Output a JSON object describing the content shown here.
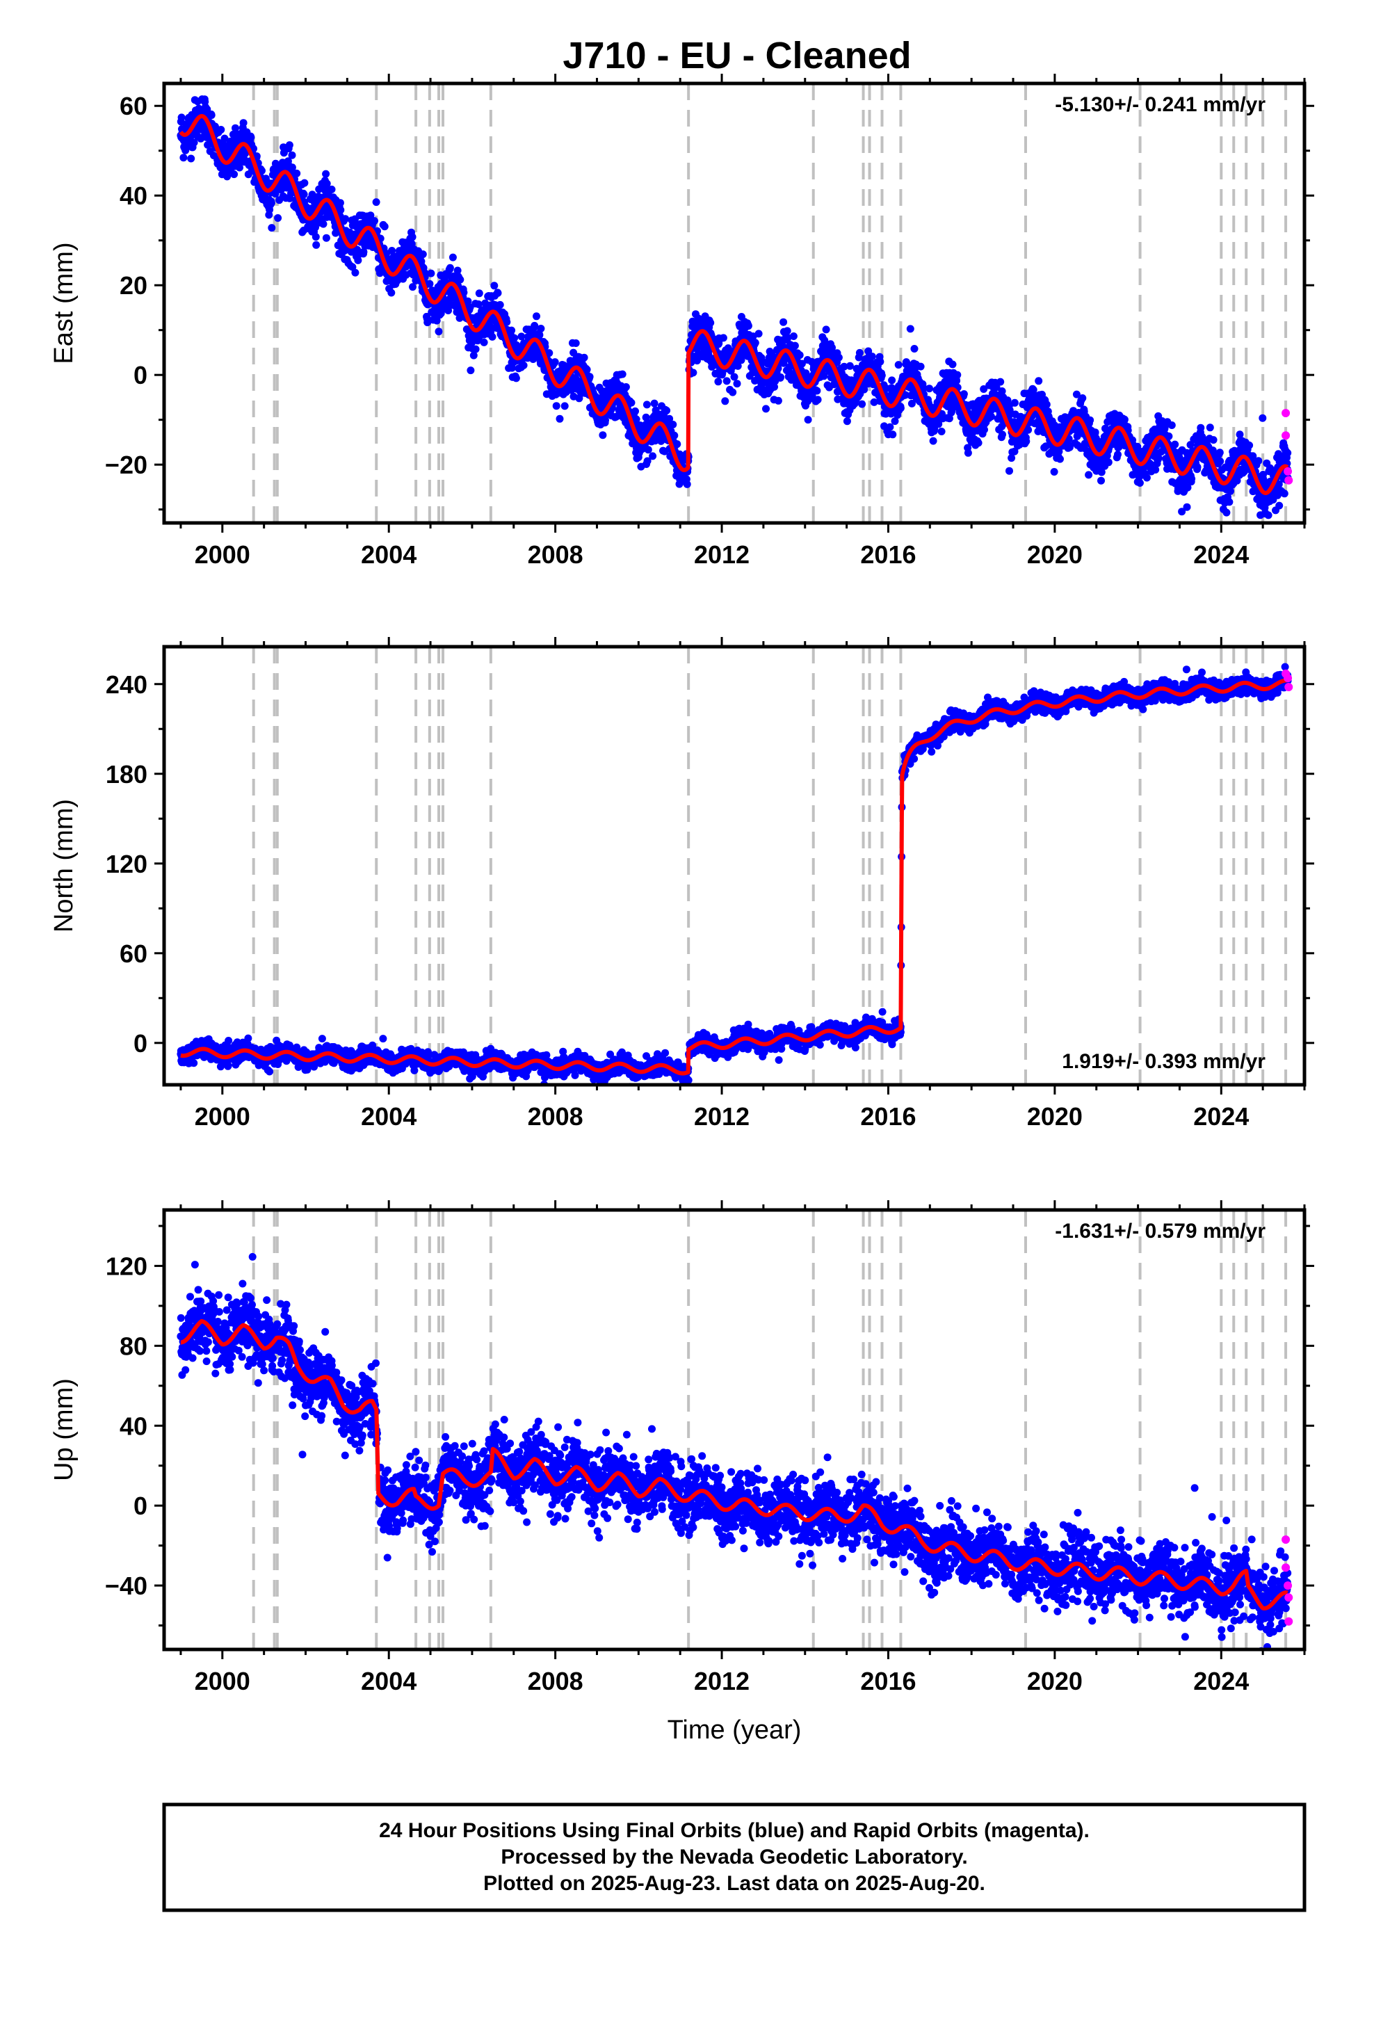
{
  "title": "J710  - EU - Cleaned",
  "colors": {
    "final_orbits": "#0000ff",
    "rapid_orbits": "#ff00ff",
    "model": "#ff0000",
    "events": "#c0c0c0"
  },
  "chart_data": [
    {
      "type": "scatter",
      "name": "east",
      "ylabel": "East (mm)",
      "xlabel": "",
      "xlim": [
        1998.6,
        2026.0
      ],
      "ylim": [
        -33,
        65
      ],
      "x_ticks": [
        2000,
        2004,
        2008,
        2012,
        2016,
        2020,
        2024
      ],
      "y_ticks": [
        -20,
        0,
        20,
        40,
        60
      ],
      "y_tick_labels": [
        "−20",
        "0",
        "20",
        "40",
        "60"
      ],
      "x_tick_labels": [
        "2000",
        "2004",
        "2008",
        "2012",
        "2016",
        "2020",
        "2024"
      ],
      "rate": "-5.130+/- 0.241 mm/yr",
      "rate_position": "top-right",
      "grid": false,
      "event_lines": [
        2000.75,
        2001.25,
        2001.32,
        2003.7,
        2004.65,
        2004.98,
        2005.2,
        2005.3,
        2006.45,
        2011.2,
        2014.2,
        2015.4,
        2015.55,
        2015.85,
        2016.3,
        2019.3,
        2022.05,
        2024.0,
        2024.3,
        2024.6,
        2025.0,
        2025.55
      ],
      "trend_segments": [
        {
          "t0": 1999.0,
          "t1": 2011.2,
          "v0": 57.5,
          "v1": -18.5
        },
        {
          "t0": 2011.2,
          "t1": 2025.6,
          "v0": 7.0,
          "v1": -24.0
        }
      ],
      "seasonal_amplitude": 3.5,
      "scatter_spread": 2.5,
      "rapid_points": [
        {
          "x": 2025.55,
          "y": -8.5
        },
        {
          "x": 2025.55,
          "y": -13.5
        },
        {
          "x": 2025.6,
          "y": -21.5
        },
        {
          "x": 2025.62,
          "y": -23.5
        }
      ]
    },
    {
      "type": "scatter",
      "name": "north",
      "ylabel": "North (mm)",
      "xlabel": "",
      "xlim": [
        1998.6,
        2026.0
      ],
      "ylim": [
        -28,
        265
      ],
      "x_ticks": [
        2000,
        2004,
        2008,
        2012,
        2016,
        2020,
        2024
      ],
      "y_ticks": [
        0,
        60,
        120,
        180,
        240
      ],
      "y_tick_labels": [
        "0",
        "60",
        "120",
        "180",
        "240"
      ],
      "x_tick_labels": [
        "2000",
        "2004",
        "2008",
        "2012",
        "2016",
        "2020",
        "2024"
      ],
      "rate": "1.919+/- 0.393 mm/yr",
      "rate_position": "bottom-right",
      "grid": false,
      "event_lines": [
        2000.75,
        2001.25,
        2001.32,
        2003.7,
        2004.65,
        2004.98,
        2005.2,
        2005.3,
        2006.45,
        2011.2,
        2014.2,
        2015.4,
        2015.55,
        2015.85,
        2016.3,
        2019.3,
        2022.05,
        2024.0,
        2024.3,
        2024.6,
        2025.0,
        2025.55
      ],
      "trend_segments": [
        {
          "t0": 1999.0,
          "t1": 2011.2,
          "v0": -6.0,
          "v1": -18.0
        },
        {
          "t0": 2011.2,
          "t1": 2016.3,
          "v0": -3.0,
          "v1": 10.0
        },
        {
          "t0": 2016.3,
          "t1": 2016.33,
          "v0": 10.0,
          "v1": 178.0
        },
        {
          "t0": 2016.33,
          "t1": 2017.2,
          "v0": 178.0,
          "v1": 208.0,
          "curve": "log"
        },
        {
          "t0": 2017.2,
          "t1": 2025.6,
          "v0": 208.0,
          "v1": 240.0,
          "curve": "log"
        }
      ],
      "seasonal_amplitude": 2.5,
      "scatter_spread": 3.0,
      "rapid_points": [
        {
          "x": 2025.55,
          "y": 247
        },
        {
          "x": 2025.6,
          "y": 244
        },
        {
          "x": 2025.62,
          "y": 238
        }
      ]
    },
    {
      "type": "scatter",
      "name": "up",
      "ylabel": "Up (mm)",
      "xlabel": "Time (year)",
      "xlim": [
        1998.6,
        2026.0
      ],
      "ylim": [
        -72,
        148
      ],
      "x_ticks": [
        2000,
        2004,
        2008,
        2012,
        2016,
        2020,
        2024
      ],
      "y_ticks": [
        -40,
        0,
        40,
        80,
        120
      ],
      "y_tick_labels": [
        "−40",
        "0",
        "40",
        "80",
        "120"
      ],
      "x_tick_labels": [
        "2000",
        "2004",
        "2008",
        "2012",
        "2016",
        "2020",
        "2024"
      ],
      "rate": "-1.631+/- 0.579 mm/yr",
      "rate_position": "top-right",
      "grid": false,
      "event_lines": [
        2000.75,
        2001.25,
        2001.32,
        2003.7,
        2004.65,
        2004.98,
        2005.2,
        2005.3,
        2006.45,
        2011.2,
        2014.2,
        2015.4,
        2015.55,
        2015.85,
        2016.3,
        2019.3,
        2022.05,
        2024.0,
        2024.3,
        2024.6,
        2025.0,
        2025.55
      ],
      "model_points": [
        [
          1999.0,
          85
        ],
        [
          1999.5,
          89
        ],
        [
          2000.0,
          84
        ],
        [
          2000.5,
          87
        ],
        [
          2001.0,
          82
        ],
        [
          2001.3,
          84
        ],
        [
          2001.6,
          78
        ],
        [
          2001.8,
          70
        ],
        [
          2002.2,
          64
        ],
        [
          2002.6,
          60
        ],
        [
          2002.9,
          52
        ],
        [
          2003.3,
          48
        ],
        [
          2003.6,
          49
        ],
        [
          2003.7,
          46
        ],
        [
          2003.75,
          5
        ],
        [
          2004.2,
          3
        ],
        [
          2004.6,
          5
        ],
        [
          2004.65,
          2
        ],
        [
          2004.98,
          2
        ],
        [
          2005.2,
          2
        ],
        [
          2005.3,
          16
        ],
        [
          2005.8,
          13
        ],
        [
          2006.45,
          14
        ],
        [
          2006.5,
          25
        ],
        [
          2007.0,
          17
        ],
        [
          2007.5,
          20
        ],
        [
          2008.0,
          14
        ],
        [
          2008.5,
          16
        ],
        [
          2009.0,
          11
        ],
        [
          2009.5,
          13
        ],
        [
          2010.0,
          8
        ],
        [
          2010.5,
          10
        ],
        [
          2011.2,
          5
        ],
        [
          2011.8,
          3
        ],
        [
          2012.3,
          0
        ],
        [
          2013.0,
          -1
        ],
        [
          2013.5,
          -3
        ],
        [
          2014.2,
          -4
        ],
        [
          2014.8,
          -6
        ],
        [
          2015.4,
          -2
        ],
        [
          2015.85,
          -9
        ],
        [
          2016.3,
          -11
        ],
        [
          2016.8,
          -18
        ],
        [
          2017.5,
          -22
        ],
        [
          2018.2,
          -25
        ],
        [
          2018.8,
          -27
        ],
        [
          2019.3,
          -30
        ],
        [
          2020.0,
          -31
        ],
        [
          2020.7,
          -33
        ],
        [
          2021.4,
          -34
        ],
        [
          2022.05,
          -36
        ],
        [
          2022.7,
          -37
        ],
        [
          2023.3,
          -39
        ],
        [
          2024.0,
          -41
        ],
        [
          2024.3,
          -40
        ],
        [
          2024.6,
          -36
        ],
        [
          2024.65,
          -43
        ],
        [
          2025.0,
          -48
        ],
        [
          2025.55,
          -47
        ]
      ],
      "seasonal_amplitude": 3.5,
      "scatter_spread": 8.0,
      "rapid_points": [
        {
          "x": 2025.55,
          "y": -17
        },
        {
          "x": 2025.55,
          "y": -31
        },
        {
          "x": 2025.6,
          "y": -40
        },
        {
          "x": 2025.62,
          "y": -46
        },
        {
          "x": 2025.62,
          "y": -58
        }
      ]
    }
  ],
  "footer": {
    "line1": "24 Hour Positions Using Final Orbits (blue) and Rapid Orbits (magenta).",
    "line2": "Processed by the Nevada Geodetic Laboratory.",
    "line3": "Plotted on 2025-Aug-23. Last data on 2025-Aug-20."
  }
}
